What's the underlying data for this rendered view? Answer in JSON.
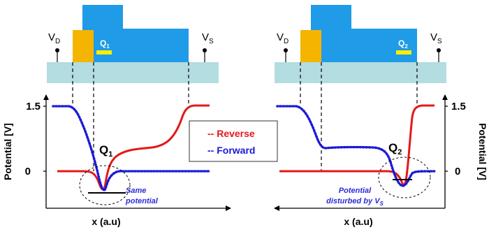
{
  "colors": {
    "substrate": "#b3dde0",
    "gate": "#1f9be8",
    "floating_gate": "#f5b400",
    "charge": "#ffee00",
    "reverse": "#e41818",
    "forward": "#1a1ad8",
    "note": "#2b2bd8"
  },
  "left_panel": {
    "drain_label": "V",
    "drain_sub": "D",
    "source_label": "V",
    "source_sub": "S",
    "charge_label": "Q",
    "charge_sub": "1",
    "y_axis_label": "Potential [V]",
    "x_axis_label": "x (a.u)",
    "tick_high": "1.5",
    "tick_zero": "0",
    "q_label": "Q",
    "q_sub": "1",
    "annotation_line1": "Same",
    "annotation_line2": "potential"
  },
  "right_panel": {
    "drain_label": "V",
    "drain_sub": "D",
    "source_label": "V",
    "source_sub": "S",
    "charge_label": "Q",
    "charge_sub": "2",
    "y_axis_label": "Potential [V]",
    "x_axis_label": "x (a.u)",
    "tick_high": "1.5",
    "tick_zero": "0",
    "q_label": "Q",
    "q_sub": "2",
    "annotation_line1": "Potential",
    "annotation_line2_prefix": "disturbed by ",
    "annotation_line2_var": "V",
    "annotation_line2_sub": "S"
  },
  "legend": {
    "reverse": "-- Reverse",
    "forward": "-- Forward"
  }
}
